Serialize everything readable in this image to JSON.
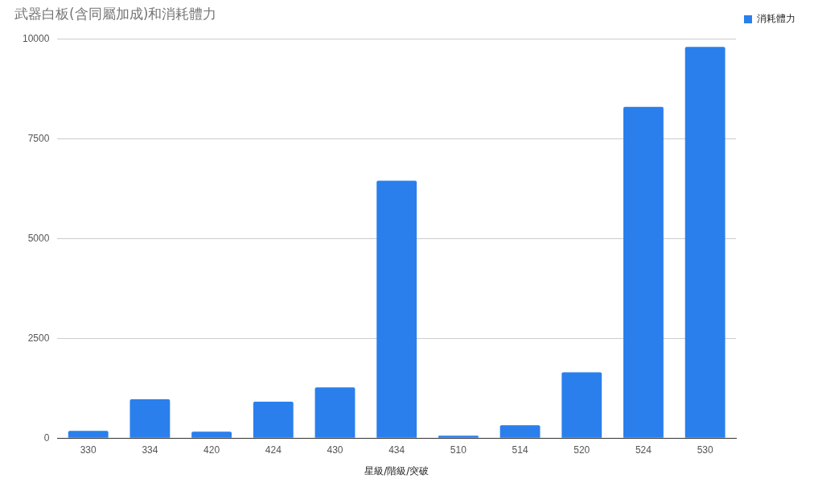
{
  "chart_data": {
    "type": "bar",
    "title": "武器白板(含同屬加成)和消耗體力",
    "xlabel": "星級/階級/突破",
    "categories": [
      "330",
      "334",
      "420",
      "424",
      "430",
      "434",
      "510",
      "514",
      "520",
      "524",
      "530"
    ],
    "series": [
      {
        "name": "消耗體力",
        "color": "#2a7fec",
        "values": [
          180,
          970,
          160,
          910,
          1270,
          6450,
          60,
          320,
          1650,
          8300,
          9800
        ]
      }
    ],
    "ylim": [
      0,
      10000
    ],
    "yticks": [
      0,
      2500,
      5000,
      7500,
      10000
    ],
    "grid": "y",
    "legend": "top right"
  }
}
